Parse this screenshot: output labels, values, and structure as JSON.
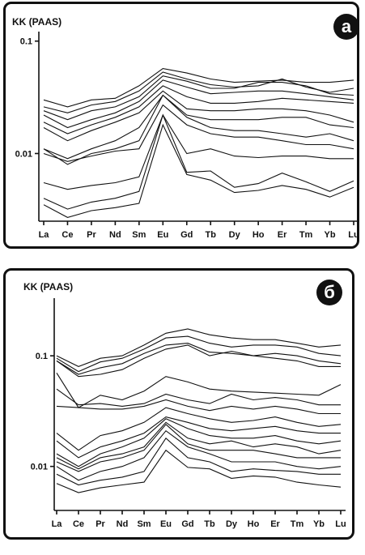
{
  "chart_data": [
    {
      "type": "line",
      "ylabel": "KK (PAAS)",
      "badge": "a",
      "ytick_labels": [
        "0.1",
        "0.01"
      ],
      "yticks": [
        0.1,
        0.01
      ],
      "ylim": [
        0.0025,
        0.11
      ],
      "yscale": "log",
      "categories": [
        "La",
        "Ce",
        "Pr",
        "Nd",
        "Sm",
        "Eu",
        "Gd",
        "Tb",
        "Dy",
        "Ho",
        "Er",
        "Tm",
        "Yb",
        "Lu"
      ],
      "series": [
        {
          "values": [
            0.03,
            0.026,
            0.03,
            0.031,
            0.04,
            0.057,
            0.052,
            0.046,
            0.043,
            0.044,
            0.045,
            0.043,
            0.043,
            0.045
          ]
        },
        {
          "values": [
            0.026,
            0.023,
            0.027,
            0.029,
            0.036,
            0.053,
            0.046,
            0.041,
            0.039,
            0.04,
            0.046,
            0.039,
            0.035,
            0.038
          ]
        },
        {
          "values": [
            0.024,
            0.02,
            0.024,
            0.026,
            0.032,
            0.049,
            0.044,
            0.038,
            0.038,
            0.043,
            0.043,
            0.04,
            0.034,
            0.033
          ]
        },
        {
          "values": [
            0.022,
            0.017,
            0.02,
            0.023,
            0.029,
            0.045,
            0.039,
            0.034,
            0.035,
            0.036,
            0.036,
            0.034,
            0.032,
            0.03
          ]
        },
        {
          "values": [
            0.019,
            0.015,
            0.018,
            0.021,
            0.026,
            0.04,
            0.032,
            0.028,
            0.028,
            0.029,
            0.031,
            0.03,
            0.029,
            0.028
          ]
        },
        {
          "values": [
            0.017,
            0.013,
            0.016,
            0.019,
            0.023,
            0.036,
            0.025,
            0.024,
            0.024,
            0.025,
            0.025,
            0.024,
            0.022,
            0.019
          ]
        },
        {
          "values": [
            0.011,
            0.009,
            0.011,
            0.013,
            0.017,
            0.033,
            0.022,
            0.02,
            0.02,
            0.02,
            0.021,
            0.021,
            0.018,
            0.017
          ]
        },
        {
          "values": [
            0.011,
            0.008,
            0.01,
            0.011,
            0.013,
            0.033,
            0.021,
            0.017,
            0.016,
            0.016,
            0.015,
            0.014,
            0.015,
            0.013
          ]
        },
        {
          "values": [
            0.01,
            0.0085,
            0.0095,
            0.0105,
            0.011,
            0.027,
            0.018,
            0.015,
            0.014,
            0.014,
            0.013,
            0.012,
            0.012,
            0.011
          ]
        },
        {
          "values": [
            0.0055,
            0.0048,
            0.0052,
            0.0055,
            0.0062,
            0.022,
            0.01,
            0.011,
            0.0095,
            0.0092,
            0.0095,
            0.0095,
            0.009,
            0.009
          ]
        },
        {
          "values": [
            0.004,
            0.0032,
            0.0037,
            0.004,
            0.0046,
            0.022,
            0.0068,
            0.007,
            0.005,
            0.0054,
            0.0067,
            0.0056,
            0.0046,
            0.0057
          ]
        },
        {
          "values": [
            0.0035,
            0.0027,
            0.0031,
            0.0033,
            0.0036,
            0.018,
            0.0065,
            0.0058,
            0.0045,
            0.0047,
            0.0052,
            0.0048,
            0.0041,
            0.005
          ]
        }
      ]
    },
    {
      "type": "line",
      "ylabel": "KK (PAAS)",
      "badge": "б",
      "ytick_labels": [
        "0.1",
        "0.01"
      ],
      "yticks": [
        0.1,
        0.01
      ],
      "ylim": [
        0.004,
        0.3
      ],
      "yscale": "log",
      "categories": [
        "La",
        "Ce",
        "Pr",
        "Nd",
        "Sm",
        "Eu",
        "Gd",
        "Tb",
        "Dy",
        "Ho",
        "Er",
        "Tm",
        "Yb",
        "Lu"
      ],
      "series": [
        {
          "values": [
            0.1,
            0.08,
            0.095,
            0.1,
            0.125,
            0.16,
            0.175,
            0.155,
            0.145,
            0.14,
            0.14,
            0.13,
            0.12,
            0.125
          ]
        },
        {
          "values": [
            0.095,
            0.072,
            0.088,
            0.095,
            0.115,
            0.145,
            0.15,
            0.13,
            0.12,
            0.125,
            0.125,
            0.12,
            0.105,
            0.1
          ]
        },
        {
          "values": [
            0.09,
            0.068,
            0.078,
            0.085,
            0.105,
            0.125,
            0.13,
            0.108,
            0.105,
            0.1,
            0.105,
            0.1,
            0.09,
            0.085
          ]
        },
        {
          "values": [
            0.09,
            0.065,
            0.068,
            0.075,
            0.095,
            0.115,
            0.125,
            0.1,
            0.11,
            0.1,
            0.095,
            0.09,
            0.08,
            0.08
          ]
        },
        {
          "values": [
            0.07,
            0.034,
            0.044,
            0.04,
            0.048,
            0.065,
            0.058,
            0.05,
            0.048,
            0.047,
            0.046,
            0.045,
            0.044,
            0.055
          ]
        },
        {
          "values": [
            0.05,
            0.036,
            0.037,
            0.035,
            0.037,
            0.045,
            0.04,
            0.037,
            0.045,
            0.04,
            0.042,
            0.04,
            0.036,
            0.036
          ]
        },
        {
          "values": [
            0.035,
            0.034,
            0.033,
            0.033,
            0.035,
            0.04,
            0.035,
            0.032,
            0.035,
            0.033,
            0.035,
            0.033,
            0.03,
            0.03
          ]
        },
        {
          "values": [
            0.02,
            0.014,
            0.019,
            0.021,
            0.025,
            0.034,
            0.03,
            0.027,
            0.025,
            0.026,
            0.028,
            0.025,
            0.023,
            0.024
          ]
        },
        {
          "values": [
            0.017,
            0.012,
            0.015,
            0.017,
            0.02,
            0.028,
            0.025,
            0.022,
            0.021,
            0.022,
            0.023,
            0.021,
            0.02,
            0.02
          ]
        },
        {
          "values": [
            0.013,
            0.01,
            0.013,
            0.015,
            0.018,
            0.027,
            0.022,
            0.019,
            0.018,
            0.018,
            0.019,
            0.017,
            0.016,
            0.017
          ]
        },
        {
          "values": [
            0.012,
            0.0095,
            0.012,
            0.013,
            0.015,
            0.025,
            0.018,
            0.016,
            0.017,
            0.015,
            0.016,
            0.015,
            0.013,
            0.014
          ]
        },
        {
          "values": [
            0.011,
            0.009,
            0.011,
            0.012,
            0.014,
            0.024,
            0.016,
            0.014,
            0.014,
            0.014,
            0.013,
            0.012,
            0.012,
            0.012
          ]
        },
        {
          "values": [
            0.01,
            0.0075,
            0.009,
            0.01,
            0.012,
            0.021,
            0.015,
            0.013,
            0.011,
            0.011,
            0.011,
            0.01,
            0.0095,
            0.01
          ]
        },
        {
          "values": [
            0.0085,
            0.0068,
            0.0075,
            0.008,
            0.009,
            0.018,
            0.012,
            0.011,
            0.009,
            0.0095,
            0.0092,
            0.009,
            0.0085,
            0.0085
          ]
        },
        {
          "values": [
            0.007,
            0.0058,
            0.0064,
            0.0068,
            0.0072,
            0.014,
            0.0098,
            0.0095,
            0.0078,
            0.0082,
            0.008,
            0.0072,
            0.0068,
            0.0065
          ]
        }
      ]
    }
  ]
}
